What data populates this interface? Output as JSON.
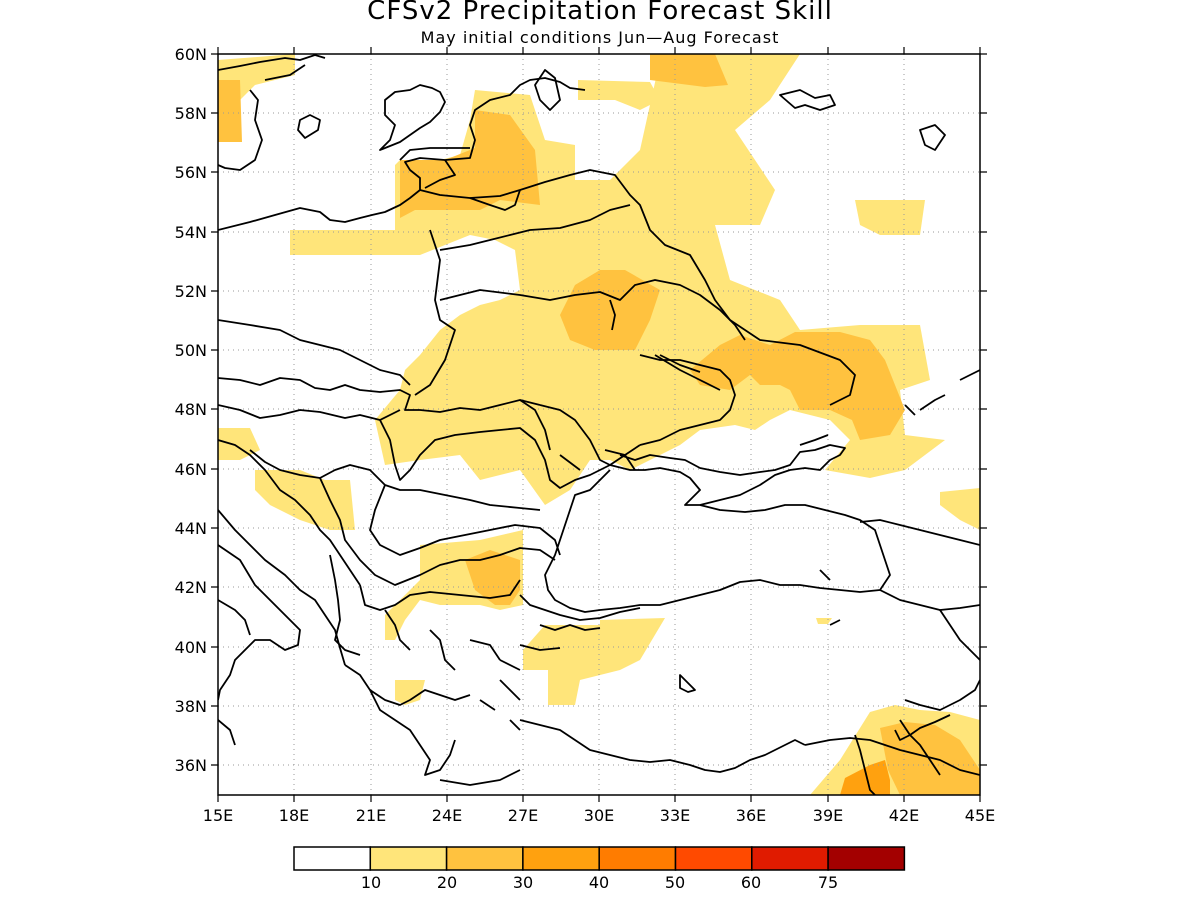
{
  "title": "CFSv2 Precipitation Forecast Skill",
  "subtitle": "May initial conditions  Jun—Aug Forecast",
  "map": {
    "lon_range": [
      15,
      45
    ],
    "lat_range": [
      35,
      60
    ],
    "lon_labels": [
      "15E",
      "18E",
      "21E",
      "24E",
      "27E",
      "30E",
      "33E",
      "36E",
      "39E",
      "42E",
      "45E"
    ],
    "lat_labels": [
      "36N",
      "38N",
      "40N",
      "42N",
      "44N",
      "46N",
      "48N",
      "50N",
      "52N",
      "54N",
      "56N",
      "58N",
      "60N"
    ],
    "grid": "dotted",
    "features": [
      "coastlines",
      "country-borders"
    ]
  },
  "legend": {
    "labels": [
      "10",
      "20",
      "30",
      "40",
      "50",
      "60",
      "75"
    ],
    "colors": [
      "#ffffff",
      "#ffe57a",
      "#ffc23f",
      "#ffa10f",
      "#ff7c00",
      "#ff4a00",
      "#e01b00",
      "#a30000"
    ]
  },
  "colors": {
    "level1": "#ffe57a",
    "level2": "#ffc23f",
    "level3": "#ffa10f"
  }
}
